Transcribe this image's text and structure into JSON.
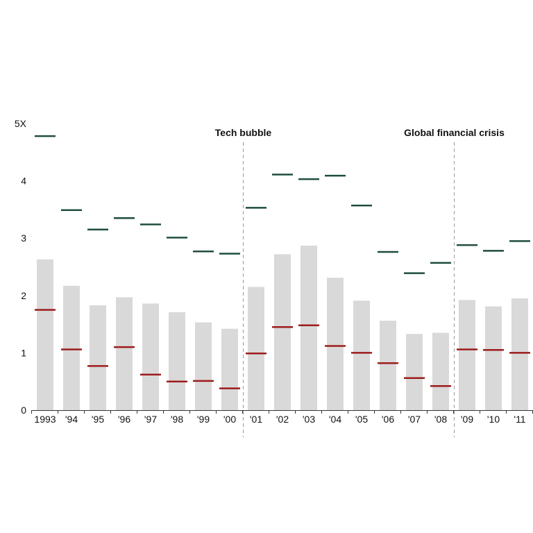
{
  "chart_data": {
    "type": "bar",
    "categories": [
      "1993",
      "'94",
      "'95",
      "'96",
      "'97",
      "'98",
      "'99",
      "'00",
      "'01",
      "'02",
      "'03",
      "'04",
      "'05",
      "'06",
      "'07",
      "'08",
      "'09",
      "'10",
      "'11"
    ],
    "series": [
      {
        "kind": "bar",
        "values": [
          2.63,
          2.17,
          1.83,
          1.97,
          1.86,
          1.71,
          1.53,
          1.42,
          2.15,
          2.72,
          2.87,
          2.31,
          1.91,
          1.56,
          1.33,
          1.35,
          1.92,
          1.81,
          1.95
        ]
      },
      {
        "kind": "upper-marker",
        "values": [
          4.78,
          3.49,
          3.15,
          3.35,
          3.24,
          3.01,
          2.77,
          2.73,
          3.53,
          4.11,
          4.03,
          4.09,
          3.57,
          2.76,
          2.39,
          2.57,
          2.88,
          2.78,
          2.95
        ]
      },
      {
        "kind": "lower-marker",
        "values": [
          1.75,
          1.06,
          0.77,
          1.1,
          0.62,
          0.5,
          0.51,
          0.38,
          0.99,
          1.45,
          1.48,
          1.12,
          1.0,
          0.82,
          0.56,
          0.42,
          1.06,
          1.05,
          1.0
        ]
      }
    ],
    "ylim": [
      0,
      5
    ],
    "yticks": [
      {
        "value": 0,
        "label": "0"
      },
      {
        "value": 1,
        "label": "1"
      },
      {
        "value": 2,
        "label": "2"
      },
      {
        "value": 3,
        "label": "3"
      },
      {
        "value": 4,
        "label": "4"
      },
      {
        "value": 5,
        "label": "5X"
      }
    ],
    "grid": false,
    "annotations": [
      {
        "label": "Tech bubble",
        "divider_between": [
          "'00",
          "'01"
        ]
      },
      {
        "label": "Global financial crisis",
        "divider_between": [
          "'08",
          "'09"
        ]
      }
    ],
    "colors": {
      "bar": "#d9d9d9",
      "upper": "#1f4d3d",
      "lower": "#9e1b1b",
      "divider": "#9a9a9a",
      "axis": "#333333"
    }
  }
}
